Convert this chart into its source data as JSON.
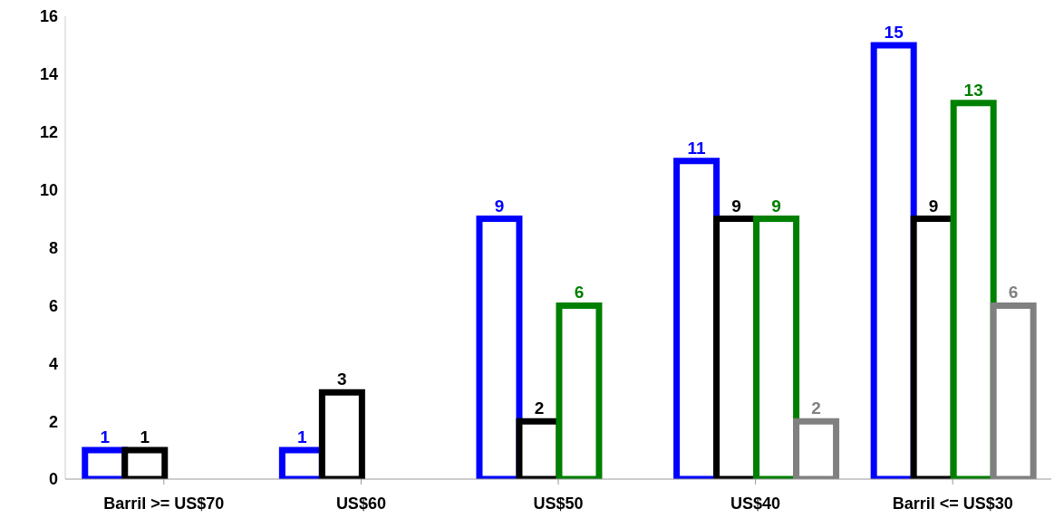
{
  "chart_data": {
    "type": "bar",
    "categories": [
      "Barril  >= US$70",
      "US$60",
      "US$50",
      "US$40",
      "Barril <= US$30"
    ],
    "series": [
      {
        "color": "#0000ff",
        "values": [
          1,
          1,
          9,
          11,
          15
        ]
      },
      {
        "color": "#000000",
        "values": [
          1,
          3,
          2,
          9,
          9
        ]
      },
      {
        "color": "#008000",
        "values": [
          null,
          null,
          6,
          9,
          13
        ]
      },
      {
        "color": "#808080",
        "values": [
          null,
          null,
          null,
          2,
          6
        ]
      }
    ],
    "ylim": [
      0,
      16
    ],
    "yticks": [
      0,
      2,
      4,
      6,
      8,
      10,
      12,
      14,
      16
    ],
    "grid": false,
    "legend": false,
    "data_labels": true
  }
}
